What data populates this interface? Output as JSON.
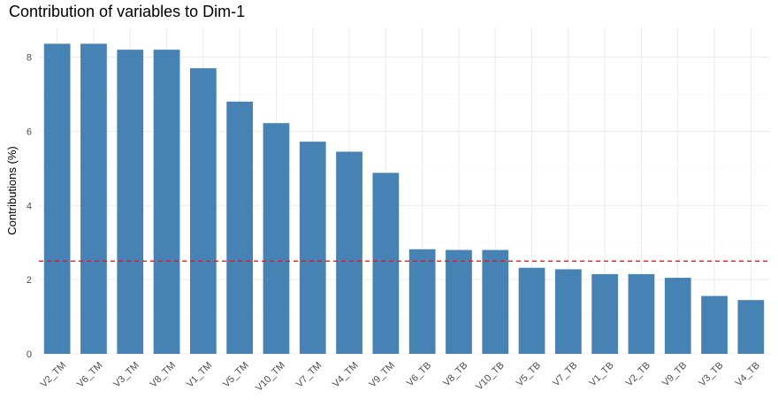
{
  "chart_data": {
    "type": "bar",
    "title": "Contribution of variables to Dim-1",
    "xlabel": "",
    "ylabel": "Contributions (%)",
    "categories": [
      "V2_TM",
      "V6_TM",
      "V3_TM",
      "V8_TM",
      "V1_TM",
      "V5_TM",
      "V10_TM",
      "V7_TM",
      "V4_TM",
      "V9_TM",
      "V6_TB",
      "V8_TB",
      "V10_TB",
      "V5_TB",
      "V7_TB",
      "V1_TB",
      "V2_TB",
      "V9_TB",
      "V3_TB",
      "V4_TB"
    ],
    "values": [
      8.36,
      8.36,
      8.2,
      8.2,
      7.7,
      6.8,
      6.22,
      5.72,
      5.45,
      4.88,
      2.82,
      2.8,
      2.8,
      2.32,
      2.28,
      2.15,
      2.15,
      2.05,
      1.56,
      1.45
    ],
    "ylim": [
      0,
      8.8
    ],
    "yticks": [
      0,
      2,
      4,
      6,
      8
    ],
    "reference_line": 2.5,
    "bar_color": "#4682b4",
    "reference_line_color": "#e41a1c",
    "grid": true
  }
}
